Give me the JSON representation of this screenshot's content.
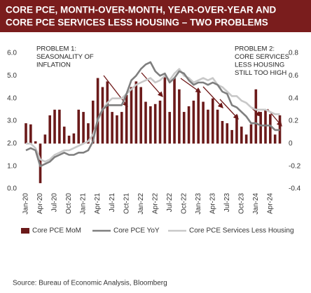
{
  "chart_data": {
    "type": "bar",
    "title": [
      "CORE PCE, MONTH-OVER-MONTH, YEAR-OVER-YEAR AND",
      "CORE PCE SERVICES LESS HOUSING – TWO PROBLEMS"
    ],
    "annotations": [
      [
        "PROBLEM 1:",
        "SEASONALITY OF",
        "INFLATION"
      ],
      [
        "PROBLEM 2:",
        "CORE SERVICES",
        "LESS HOUSING",
        "STILL TOO HIGH"
      ]
    ],
    "source": "Source:  Bureau of Economic Analysis, Bloomberg",
    "categories": [
      "Jan-20",
      null,
      null,
      "Apr-20",
      null,
      null,
      "Jul-20",
      null,
      null,
      "Oct-20",
      null,
      null,
      "Jan-21",
      null,
      null,
      "Apr-21",
      null,
      null,
      "Jul-21",
      null,
      null,
      "Oct-21",
      null,
      null,
      "Jan-22",
      null,
      null,
      "Apr-22",
      null,
      null,
      "Jul-22",
      null,
      null,
      "Oct-22",
      null,
      null,
      "Jan-23",
      null,
      null,
      "Apr-23",
      null,
      null,
      "Jul-23",
      null,
      null,
      "Oct-23",
      null,
      null,
      "Jan-24",
      null,
      null,
      "Apr-24",
      null,
      null
    ],
    "series": [
      {
        "name": "Core PCE MoM",
        "type": "bar",
        "axis": "y2",
        "color": "#6b1a1a",
        "values": [
          0.18,
          0.17,
          0.02,
          -0.35,
          0.08,
          0.25,
          0.3,
          0.3,
          0.15,
          0.07,
          0.09,
          0.3,
          0.28,
          0.18,
          0.38,
          0.58,
          0.5,
          0.55,
          0.28,
          0.25,
          0.28,
          0.43,
          0.5,
          0.55,
          0.5,
          0.37,
          0.33,
          0.35,
          0.38,
          0.6,
          0.28,
          0.58,
          0.48,
          0.28,
          0.33,
          0.38,
          0.48,
          0.37,
          0.3,
          0.4,
          0.3,
          0.2,
          0.18,
          0.12,
          0.25,
          0.15,
          0.08,
          0.17,
          0.48,
          0.28,
          0.3,
          0.26,
          0.08,
          0.25
        ]
      },
      {
        "name": "Core PCE YoY",
        "type": "line",
        "color": "#7f7f7f",
        "values": [
          1.7,
          1.8,
          1.7,
          1.0,
          1.1,
          1.2,
          1.4,
          1.5,
          1.6,
          1.5,
          1.5,
          1.6,
          1.6,
          1.7,
          2.1,
          3.1,
          3.5,
          3.7,
          3.7,
          3.7,
          3.7,
          4.2,
          4.8,
          5.0,
          5.3,
          5.5,
          5.6,
          5.2,
          5.0,
          5.1,
          4.7,
          4.9,
          5.2,
          5.1,
          4.8,
          4.6,
          4.7,
          4.7,
          4.6,
          4.7,
          4.6,
          4.3,
          4.2,
          3.7,
          3.6,
          3.4,
          3.2,
          2.9,
          2.9,
          2.8,
          2.8,
          2.8,
          2.6,
          2.6
        ]
      },
      {
        "name": "Core PCE Services Less Housing",
        "type": "line",
        "color": "#c8c8c8",
        "values": [
          2.0,
          2.0,
          1.8,
          1.3,
          1.2,
          1.3,
          1.5,
          1.6,
          1.7,
          1.7,
          1.8,
          1.9,
          2.0,
          2.1,
          2.4,
          3.0,
          3.5,
          3.8,
          4.0,
          4.0,
          4.0,
          4.2,
          4.4,
          4.6,
          4.7,
          4.8,
          4.9,
          4.7,
          4.8,
          5.0,
          4.8,
          5.1,
          5.3,
          5.0,
          4.9,
          4.7,
          4.8,
          4.9,
          4.8,
          4.9,
          4.6,
          4.5,
          4.3,
          4.1,
          4.1,
          3.9,
          3.8,
          3.6,
          3.5,
          3.5,
          3.5,
          3.4,
          3.3,
          3.3
        ]
      }
    ],
    "ylim": [
      0,
      6
    ],
    "yticks": [
      {
        "value": 0,
        "label": "0.0"
      },
      {
        "value": 1,
        "label": "1.0"
      },
      {
        "value": 2,
        "label": "2.0"
      },
      {
        "value": 3,
        "label": "3.0"
      },
      {
        "value": 4,
        "label": "4.0"
      },
      {
        "value": 5,
        "label": "5.0"
      },
      {
        "value": 6,
        "label": "6.0"
      }
    ],
    "y2lim": [
      -0.4,
      0.8
    ],
    "y2ticks": [
      -0.4,
      -0.2,
      0,
      0.2,
      0.4,
      0.6,
      0.8
    ],
    "legend": "bottom"
  }
}
